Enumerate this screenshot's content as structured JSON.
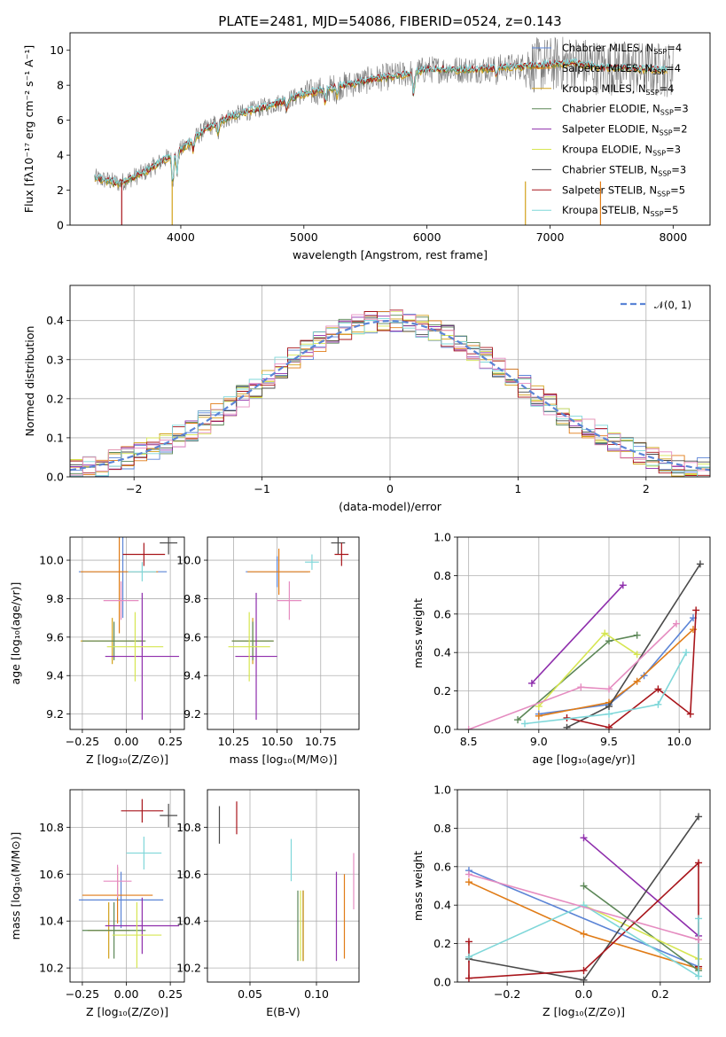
{
  "title": "PLATE=2481, MJD=54086, FIBERID=0524, z=0.143",
  "colors": {
    "Chabrier MILES": "#5b84d6",
    "Salpeter MILES": "#e07b16",
    "Kroupa MILES": "#d2a11a",
    "Chabrier ELODIE": "#5c8757",
    "Salpeter ELODIE": "#8e2eac",
    "Kroupa ELODIE": "#d6e651",
    "Chabrier STELIB": "#4a4a4a",
    "Salpeter STELIB": "#a8151b",
    "Kroupa STELIB": "#7fd7d9",
    "pink": "#e58cc0"
  },
  "chart_data": [
    {
      "id": "spectrum",
      "type": "line",
      "xlabel": "wavelength [Angstrom, rest frame]",
      "ylabel": "Flux [fλ10⁻¹⁷ erg cm⁻² s⁻¹ A⁻¹]",
      "xlim": [
        3100,
        8300
      ],
      "ylim": [
        0,
        11
      ],
      "xticks": [
        "4000",
        "5000",
        "6000",
        "7000",
        "8000"
      ],
      "yticks": [
        "0",
        "2",
        "4",
        "6",
        "8",
        "10"
      ],
      "legend_position": "top-right",
      "legend": [
        {
          "label": "Chabrier MILES",
          "n": "4"
        },
        {
          "label": "Salpeter MILES",
          "n": "4"
        },
        {
          "label": "Kroupa MILES",
          "n": "4"
        },
        {
          "label": "Chabrier ELODIE",
          "n": "3"
        },
        {
          "label": "Salpeter ELODIE",
          "n": "2"
        },
        {
          "label": "Kroupa ELODIE",
          "n": "3"
        },
        {
          "label": "Chabrier STELIB",
          "n": "3"
        },
        {
          "label": "Salpeter STELIB",
          "n": "5"
        },
        {
          "label": "Kroupa STELIB",
          "n": "5"
        }
      ],
      "legend_suffix": "SSP",
      "legend_prefix": "N",
      "continuum": [
        [
          3300,
          2.7
        ],
        [
          3500,
          2.4
        ],
        [
          3700,
          3.0
        ],
        [
          3900,
          3.9
        ],
        [
          4000,
          4.3
        ],
        [
          4200,
          5.5
        ],
        [
          4400,
          6.2
        ],
        [
          4600,
          6.6
        ],
        [
          4800,
          7.0
        ],
        [
          5000,
          7.5
        ],
        [
          5200,
          7.8
        ],
        [
          5400,
          8.1
        ],
        [
          5600,
          8.4
        ],
        [
          5800,
          8.6
        ],
        [
          6000,
          8.9
        ],
        [
          6200,
          8.9
        ],
        [
          6400,
          8.9
        ],
        [
          6600,
          9.0
        ],
        [
          6800,
          9.1
        ],
        [
          7000,
          9.2
        ],
        [
          7200,
          9.3
        ],
        [
          7400,
          9.0
        ],
        [
          7600,
          9.0
        ],
        [
          7800,
          8.9
        ],
        [
          8000,
          8.9
        ]
      ]
    },
    {
      "id": "residuals",
      "type": "line",
      "xlabel": "(data-model)/error",
      "ylabel": "Normed distribution",
      "xlim": [
        -2.5,
        2.5
      ],
      "ylim": [
        0,
        0.49
      ],
      "xticks": [
        "−2",
        "−1",
        "0",
        "1",
        "2"
      ],
      "yticks": [
        "0.0",
        "0.1",
        "0.2",
        "0.3",
        "0.4"
      ],
      "legend_label": "𝒩(0, 1)",
      "legend_position": "top-right",
      "grid": true
    },
    {
      "id": "age_vs_Z",
      "type": "scatter",
      "xlabel": "Z [log₁₀(Z/Z⊙)]",
      "ylabel": "age  [log₁₀(age/yr)]",
      "xlim": [
        -0.32,
        0.33
      ],
      "ylim": [
        9.12,
        10.12
      ],
      "xticks": [
        "−0.25",
        "0.00",
        "0.25"
      ],
      "yticks": [
        "9.2",
        "9.4",
        "9.6",
        "9.8",
        "10.0"
      ],
      "grid": true,
      "points": [
        {
          "c": "Chabrier MILES",
          "x": -0.02,
          "y": 9.94,
          "xe": 0.25,
          "ye": 0.24
        },
        {
          "c": "Salpeter MILES",
          "x": -0.04,
          "y": 9.94,
          "xe": 0.22,
          "ye": 0.32
        },
        {
          "c": "Kroupa MILES",
          "x": -0.08,
          "y": 9.58,
          "xe": 0.18,
          "ye": 0.12
        },
        {
          "c": "Chabrier ELODIE",
          "x": -0.07,
          "y": 9.58,
          "xe": 0.18,
          "ye": 0.1
        },
        {
          "c": "Salpeter ELODIE",
          "x": 0.09,
          "y": 9.5,
          "xe": 0.21,
          "ye": 0.33
        },
        {
          "c": "Kroupa ELODIE",
          "x": 0.05,
          "y": 9.55,
          "xe": 0.16,
          "ye": 0.18
        },
        {
          "c": "Chabrier STELIB",
          "x": 0.24,
          "y": 10.09,
          "xe": 0.05,
          "ye": 0.06
        },
        {
          "c": "Salpeter STELIB",
          "x": 0.1,
          "y": 10.03,
          "xe": 0.12,
          "ye": 0.06
        },
        {
          "c": "Kroupa STELIB",
          "x": 0.09,
          "y": 9.94,
          "xe": 0.08,
          "ye": 0.05
        },
        {
          "c": "pink",
          "x": -0.03,
          "y": 9.79,
          "xe": 0.1,
          "ye": 0.1
        }
      ]
    },
    {
      "id": "age_vs_mass",
      "type": "scatter",
      "xlabel": "mass [log₁₀(M/M⊙)]",
      "ylabel": "",
      "xlim": [
        10.1,
        10.97
      ],
      "ylim": [
        9.12,
        10.12
      ],
      "xticks": [
        "10.25",
        "10.50",
        "10.75"
      ],
      "yticks": [
        "9.2",
        "9.4",
        "9.6",
        "9.8",
        "10.0"
      ],
      "grid": true,
      "points": [
        {
          "c": "Chabrier MILES",
          "x": 10.5,
          "y": 9.94,
          "xe": 0.18,
          "ye": 0.08
        },
        {
          "c": "Salpeter MILES",
          "x": 10.51,
          "y": 9.94,
          "xe": 0.18,
          "ye": 0.12
        },
        {
          "c": "Kroupa MILES",
          "x": 10.36,
          "y": 9.58,
          "xe": 0.12,
          "ye": 0.12
        },
        {
          "c": "Chabrier ELODIE",
          "x": 10.36,
          "y": 9.58,
          "xe": 0.12,
          "ye": 0.1
        },
        {
          "c": "Salpeter ELODIE",
          "x": 10.38,
          "y": 9.5,
          "xe": 0.12,
          "ye": 0.33
        },
        {
          "c": "Kroupa ELODIE",
          "x": 10.34,
          "y": 9.55,
          "xe": 0.12,
          "ye": 0.18
        },
        {
          "c": "Chabrier STELIB",
          "x": 10.85,
          "y": 10.09,
          "xe": 0.04,
          "ye": 0.06
        },
        {
          "c": "Salpeter STELIB",
          "x": 10.87,
          "y": 10.03,
          "xe": 0.04,
          "ye": 0.06
        },
        {
          "c": "Kroupa STELIB",
          "x": 10.7,
          "y": 9.99,
          "xe": 0.04,
          "ye": 0.04
        },
        {
          "c": "pink",
          "x": 10.57,
          "y": 9.79,
          "xe": 0.07,
          "ye": 0.1
        }
      ]
    },
    {
      "id": "mw_vs_age",
      "type": "line",
      "xlabel": "age  [log₁₀(age/yr)]",
      "ylabel": "mass weight",
      "xlim": [
        8.42,
        10.22
      ],
      "ylim": [
        0,
        1.0
      ],
      "xticks": [
        "8.5",
        "9.0",
        "9.5",
        "10.0"
      ],
      "yticks": [
        "0.0",
        "0.2",
        "0.4",
        "0.6",
        "0.8",
        "1.0"
      ],
      "grid": true,
      "series": [
        {
          "c": "Chabrier MILES",
          "pts": [
            [
              9.0,
              0.08
            ],
            [
              9.5,
              0.13
            ],
            [
              9.75,
              0.28
            ],
            [
              10.1,
              0.58
            ]
          ]
        },
        {
          "c": "Salpeter MILES",
          "pts": [
            [
              9.0,
              0.07
            ],
            [
              9.5,
              0.14
            ],
            [
              9.7,
              0.25
            ],
            [
              10.1,
              0.52
            ]
          ]
        },
        {
          "c": "Chabrier ELODIE",
          "pts": [
            [
              8.85,
              0.05
            ],
            [
              9.5,
              0.46
            ],
            [
              9.7,
              0.49
            ]
          ]
        },
        {
          "c": "Salpeter ELODIE",
          "pts": [
            [
              8.95,
              0.24
            ],
            [
              9.6,
              0.75
            ]
          ]
        },
        {
          "c": "Kroupa ELODIE",
          "pts": [
            [
              9.0,
              0.12
            ],
            [
              9.47,
              0.5
            ],
            [
              9.7,
              0.39
            ]
          ]
        },
        {
          "c": "Chabrier STELIB",
          "pts": [
            [
              9.2,
              0.01
            ],
            [
              9.5,
              0.12
            ],
            [
              10.15,
              0.86
            ]
          ]
        },
        {
          "c": "Salpeter STELIB",
          "pts": [
            [
              9.2,
              0.06
            ],
            [
              9.5,
              0.01
            ],
            [
              9.85,
              0.21
            ],
            [
              10.08,
              0.08
            ],
            [
              10.12,
              0.62
            ]
          ]
        },
        {
          "c": "Kroupa STELIB",
          "pts": [
            [
              8.9,
              0.03
            ],
            [
              9.5,
              0.08
            ],
            [
              9.85,
              0.13
            ],
            [
              10.05,
              0.4
            ]
          ]
        },
        {
          "c": "pink",
          "pts": [
            [
              8.5,
              0.0
            ],
            [
              9.3,
              0.22
            ],
            [
              9.5,
              0.21
            ],
            [
              9.98,
              0.55
            ]
          ]
        }
      ]
    },
    {
      "id": "mass_vs_Z",
      "type": "scatter",
      "xlabel": "Z [log₁₀(Z/Z⊙)]",
      "ylabel": "mass [log₁₀(M/M⊙)]",
      "xlim": [
        -0.32,
        0.33
      ],
      "ylim": [
        10.14,
        10.96
      ],
      "xticks": [
        "−0.25",
        "0.00",
        "0.25"
      ],
      "yticks": [
        "10.2",
        "10.4",
        "10.6",
        "10.8"
      ],
      "grid": true,
      "points": [
        {
          "c": "Chabrier MILES",
          "x": -0.03,
          "y": 10.49,
          "xe": 0.24,
          "ye": 0.12
        },
        {
          "c": "Salpeter MILES",
          "x": -0.05,
          "y": 10.51,
          "xe": 0.2,
          "ye": 0.12
        },
        {
          "c": "Kroupa MILES",
          "x": -0.1,
          "y": 10.36,
          "xe": 0.12,
          "ye": 0.12
        },
        {
          "c": "Chabrier ELODIE",
          "x": -0.07,
          "y": 10.36,
          "xe": 0.18,
          "ye": 0.12
        },
        {
          "c": "Salpeter ELODIE",
          "x": 0.09,
          "y": 10.38,
          "xe": 0.21,
          "ye": 0.12
        },
        {
          "c": "Kroupa ELODIE",
          "x": 0.06,
          "y": 10.34,
          "xe": 0.14,
          "ye": 0.14
        },
        {
          "c": "Chabrier STELIB",
          "x": 0.24,
          "y": 10.85,
          "xe": 0.05,
          "ye": 0.05
        },
        {
          "c": "Salpeter STELIB",
          "x": 0.09,
          "y": 10.87,
          "xe": 0.12,
          "ye": 0.05
        },
        {
          "c": "Kroupa STELIB",
          "x": 0.1,
          "y": 10.69,
          "xe": 0.1,
          "ye": 0.07
        },
        {
          "c": "pink",
          "x": -0.05,
          "y": 10.57,
          "xe": 0.08,
          "ye": 0.07
        }
      ]
    },
    {
      "id": "mass_vs_ebv",
      "type": "scatter",
      "xlabel": "E(B-V)",
      "ylabel": "",
      "xlim": [
        0.018,
        0.132
      ],
      "ylim": [
        10.14,
        10.96
      ],
      "xticks": [
        "0.05",
        "0.10"
      ],
      "yticks": [
        "10.2",
        "10.4",
        "10.6",
        "10.8"
      ],
      "grid": true,
      "points": [
        {
          "c": "Chabrier MILES",
          "x": 0.09,
          "y": 10.38,
          "xe": 0.0,
          "ye": 0.15
        },
        {
          "c": "Salpeter MILES",
          "x": 0.09,
          "y": 10.38,
          "xe": 0.0,
          "ye": 0.15
        },
        {
          "c": "Kroupa MILES",
          "x": 0.09,
          "y": 10.38,
          "xe": 0.0,
          "ye": 0.15
        },
        {
          "c": "Chabrier ELODIE",
          "x": 0.086,
          "y": 10.38,
          "xe": 0.0,
          "ye": 0.15
        },
        {
          "c": "Salpeter ELODIE",
          "x": 0.115,
          "y": 10.42,
          "xe": 0.0,
          "ye": 0.19
        },
        {
          "c": "Kroupa ELODIE",
          "x": 0.088,
          "y": 10.38,
          "xe": 0.0,
          "ye": 0.15
        },
        {
          "c": "Chabrier STELIB",
          "x": 0.027,
          "y": 10.81,
          "xe": 0.0,
          "ye": 0.08
        },
        {
          "c": "Salpeter STELIB",
          "x": 0.04,
          "y": 10.84,
          "xe": 0.0,
          "ye": 0.07
        },
        {
          "c": "Kroupa STELIB",
          "x": 0.081,
          "y": 10.66,
          "xe": 0.0,
          "ye": 0.09
        },
        {
          "c": "pink",
          "x": 0.128,
          "y": 10.57,
          "xe": 0.0,
          "ye": 0.12
        },
        {
          "c": "Salpeter MILES",
          "x": 0.121,
          "y": 10.42,
          "xe": 0.0,
          "ye": 0.18
        }
      ]
    },
    {
      "id": "mw_vs_Z",
      "type": "line",
      "xlabel": "Z [log₁₀(Z/Z⊙)]",
      "ylabel": "mass weight",
      "xlim": [
        -0.33,
        0.33
      ],
      "ylim": [
        0,
        1.0
      ],
      "xticks": [
        "−0.2",
        "0.0",
        "0.2"
      ],
      "yticks": [
        "0.0",
        "0.2",
        "0.4",
        "0.6",
        "0.8",
        "1.0"
      ],
      "grid": true,
      "series": [
        {
          "c": "Chabrier MILES",
          "pts": [
            [
              -0.3,
              0.58
            ],
            [
              0.3,
              0.08
            ]
          ]
        },
        {
          "c": "Salpeter MILES",
          "pts": [
            [
              -0.3,
              0.52
            ],
            [
              0.0,
              0.25
            ],
            [
              0.3,
              0.07
            ]
          ]
        },
        {
          "c": "Chabrier ELODIE",
          "pts": [
            [
              0.0,
              0.5
            ],
            [
              0.3,
              0.06
            ]
          ]
        },
        {
          "c": "Salpeter ELODIE",
          "pts": [
            [
              0.0,
              0.75
            ],
            [
              0.3,
              0.24
            ]
          ]
        },
        {
          "c": "Kroupa ELODIE",
          "pts": [
            [
              0.0,
              0.4
            ],
            [
              0.3,
              0.12
            ]
          ]
        },
        {
          "c": "Chabrier STELIB",
          "pts": [
            [
              -0.3,
              0.12
            ],
            [
              0.0,
              0.01
            ],
            [
              0.3,
              0.86
            ]
          ]
        },
        {
          "c": "Salpeter STELIB",
          "pts": [
            [
              -0.3,
              0.21
            ],
            [
              -0.3,
              0.02
            ],
            [
              0.0,
              0.06
            ],
            [
              0.3,
              0.62
            ],
            [
              0.3,
              0.08
            ]
          ]
        },
        {
          "c": "Kroupa STELIB",
          "pts": [
            [
              -0.3,
              0.13
            ],
            [
              0.0,
              0.4
            ],
            [
              0.3,
              0.03
            ],
            [
              0.3,
              0.33
            ]
          ]
        },
        {
          "c": "pink",
          "pts": [
            [
              -0.3,
              0.56
            ],
            [
              0.3,
              0.22
            ]
          ]
        }
      ]
    }
  ]
}
